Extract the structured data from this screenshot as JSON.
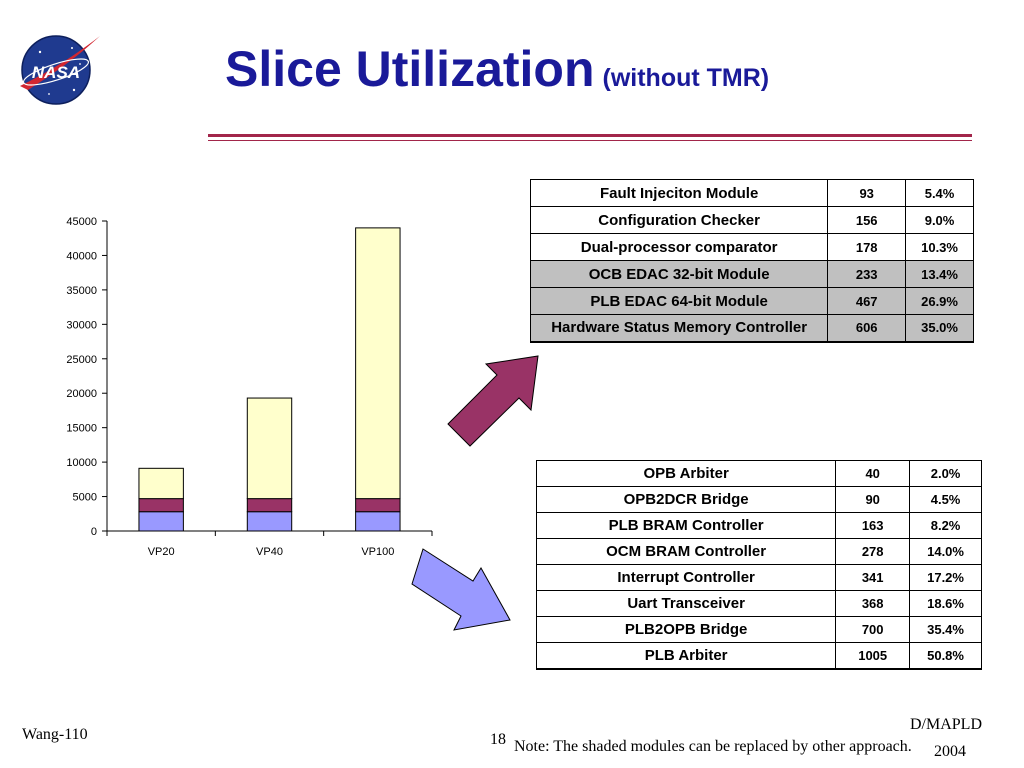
{
  "logo": {
    "text": "NASA",
    "icon": "nasa-meatball-logo"
  },
  "title": {
    "main": "Slice Utilization",
    "sub": "(without TMR)"
  },
  "chart_data": {
    "type": "bar",
    "stacked": true,
    "categories": [
      "VP20",
      "VP40",
      "VP100"
    ],
    "series": [
      {
        "values": [
          2800,
          2800,
          2800
        ],
        "color": "#9999ff"
      },
      {
        "values": [
          1900,
          1900,
          1900
        ],
        "color": "#993366"
      },
      {
        "values": [
          4400,
          14600,
          39300
        ],
        "color": "#ffffcc"
      }
    ],
    "ylim": [
      0,
      45000
    ],
    "yticks": [
      "0",
      "5000",
      "10000",
      "15000",
      "20000",
      "25000",
      "30000",
      "35000",
      "40000",
      "45000"
    ],
    "grid": false,
    "legend": "none"
  },
  "table1": [
    {
      "name": "Fault Injeciton Module",
      "count": "93",
      "pct": "5.4%",
      "shaded": false
    },
    {
      "name": "Configuration Checker",
      "count": "156",
      "pct": "9.0%",
      "shaded": false
    },
    {
      "name": "Dual-processor comparator",
      "count": "178",
      "pct": "10.3%",
      "shaded": false
    },
    {
      "name": "OCB EDAC 32-bit Module",
      "count": "233",
      "pct": "13.4%",
      "shaded": true
    },
    {
      "name": "PLB EDAC 64-bit Module",
      "count": "467",
      "pct": "26.9%",
      "shaded": true
    },
    {
      "name": "Hardware Status Memory Controller",
      "count": "606",
      "pct": "35.0%",
      "shaded": true
    }
  ],
  "table2": [
    {
      "name": "OPB Arbiter",
      "count": "40",
      "pct": "2.0%"
    },
    {
      "name": "OPB2DCR Bridge",
      "count": "90",
      "pct": "4.5%"
    },
    {
      "name": "PLB BRAM Controller",
      "count": "163",
      "pct": "8.2%"
    },
    {
      "name": "OCM BRAM Controller",
      "count": "278",
      "pct": "14.0%"
    },
    {
      "name": "Interrupt Controller",
      "count": "341",
      "pct": "17.2%"
    },
    {
      "name": "Uart Transceiver",
      "count": "368",
      "pct": "18.6%"
    },
    {
      "name": "PLB2OPB Bridge",
      "count": "700",
      "pct": "35.4%"
    },
    {
      "name": "PLB Arbiter",
      "count": "1005",
      "pct": "50.8%"
    }
  ],
  "arrows": {
    "upper_color": "#993366",
    "lower_color": "#9999ff"
  },
  "colors": {
    "title": "#1a1a99",
    "rule": "#a2264a",
    "shaded_row": "#c0c0c0"
  },
  "footer": {
    "left": "Wang-110",
    "page": "18",
    "note": "Note: The shaded modules can be replaced by other approach.",
    "right_line1": "D/MAPLD",
    "right_line2": "2004"
  }
}
